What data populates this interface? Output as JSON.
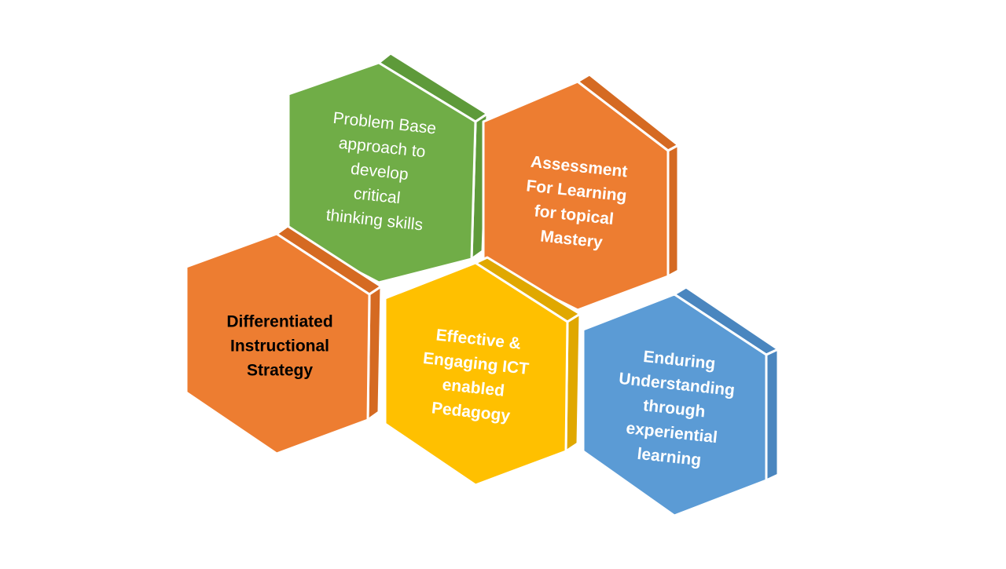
{
  "hexagons": [
    {
      "id": "problem-base",
      "lines": [
        "Problem Base",
        "approach to",
        "develop",
        "critical",
        "thinking skills"
      ],
      "bold": false,
      "face_color": "#70AD47",
      "side_color": "#5E9A3A",
      "text_color": "#ffffff"
    },
    {
      "id": "assessment",
      "lines": [
        "Assessment",
        "For Learning",
        "for topical",
        "Mastery"
      ],
      "bold": true,
      "face_color": "#ED7D31",
      "side_color": "#D56A22",
      "text_color": "#ffffff"
    },
    {
      "id": "differentiated",
      "lines": [
        "Differentiated",
        "Instructional",
        "Strategy"
      ],
      "bold": true,
      "face_color": "#ED7D31",
      "side_color": "#D56A22",
      "text_color": "#000000"
    },
    {
      "id": "ict",
      "lines": [
        "Effective &",
        "Engaging ICT",
        "enabled",
        "Pedagogy"
      ],
      "bold": true,
      "face_color": "#FFC000",
      "side_color": "#E0A800",
      "text_color": "#ffffff"
    },
    {
      "id": "enduring",
      "lines": [
        "Enduring",
        "Understanding",
        "through",
        "experiential",
        "learning"
      ],
      "bold": true,
      "face_color": "#5B9BD5",
      "side_color": "#4A86BF",
      "text_color": "#ffffff"
    }
  ]
}
